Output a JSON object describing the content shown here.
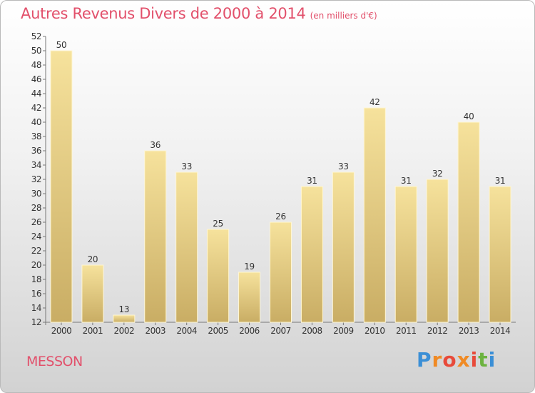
{
  "chart_data": {
    "type": "bar",
    "title": "Autres Revenus Divers de 2000 à 2014",
    "subtitle": "(en milliers d'€)",
    "categories": [
      "2000",
      "2001",
      "2002",
      "2003",
      "2004",
      "2005",
      "2006",
      "2007",
      "2008",
      "2009",
      "2010",
      "2011",
      "2012",
      "2013",
      "2014"
    ],
    "values": [
      50,
      20,
      13,
      36,
      33,
      25,
      19,
      26,
      31,
      33,
      42,
      31,
      32,
      40,
      31
    ],
    "ylim": [
      12,
      52
    ],
    "yticks": [
      12,
      14,
      16,
      18,
      20,
      22,
      24,
      26,
      28,
      30,
      32,
      34,
      36,
      38,
      40,
      42,
      44,
      46,
      48,
      50,
      52
    ],
    "grid": false,
    "colors": {
      "bar_top": "#f6e29c",
      "bar_bottom": "#c9ad64",
      "title": "#e2506b"
    }
  },
  "footer": {
    "commune": "MESSON",
    "logo_text": "Proxiti"
  }
}
